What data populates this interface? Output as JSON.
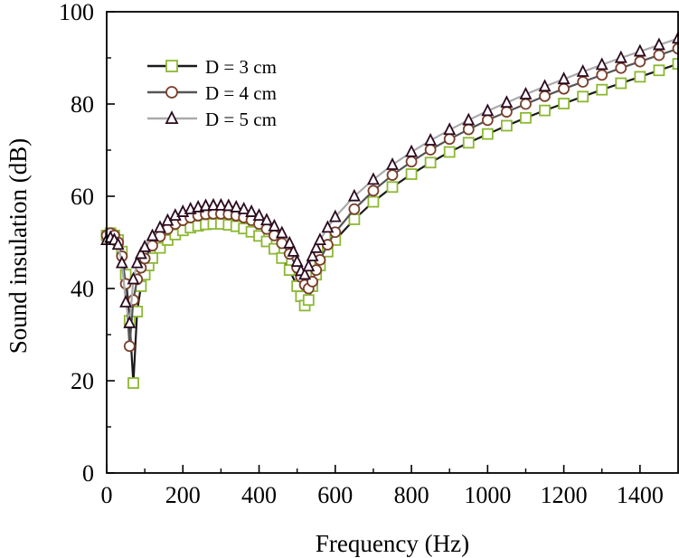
{
  "chart_data": {
    "type": "line",
    "title": "",
    "xlabel": "Frequency (Hz)",
    "ylabel": "Sound insulation (dB)",
    "xlim": [
      0,
      1500
    ],
    "ylim": [
      0,
      100
    ],
    "xticks": [
      0,
      200,
      400,
      600,
      800,
      1000,
      1200,
      1400
    ],
    "yticks": [
      0,
      20,
      40,
      60,
      80,
      100
    ],
    "grid": false,
    "legend_position": "top-left",
    "series": [
      {
        "name": "D = 3 cm",
        "line_color": "#1a1a1a",
        "marker": "square",
        "marker_color": "#8cb832",
        "points": [
          [
            0,
            51.5
          ],
          [
            10,
            52
          ],
          [
            20,
            51.5
          ],
          [
            30,
            50.5
          ],
          [
            40,
            48
          ],
          [
            50,
            43
          ],
          [
            60,
            33
          ],
          [
            70,
            19.5
          ],
          [
            80,
            35
          ],
          [
            90,
            40.5
          ],
          [
            100,
            43
          ],
          [
            110,
            45
          ],
          [
            120,
            46.6
          ],
          [
            140,
            48.8
          ],
          [
            160,
            50.5
          ],
          [
            180,
            51.7
          ],
          [
            200,
            52.6
          ],
          [
            220,
            53.2
          ],
          [
            240,
            53.6
          ],
          [
            260,
            53.9
          ],
          [
            280,
            54
          ],
          [
            300,
            54
          ],
          [
            320,
            53.8
          ],
          [
            340,
            53.5
          ],
          [
            360,
            53
          ],
          [
            380,
            52.3
          ],
          [
            400,
            51.4
          ],
          [
            420,
            50.2
          ],
          [
            440,
            48.6
          ],
          [
            460,
            46.6
          ],
          [
            480,
            44
          ],
          [
            500,
            40.5
          ],
          [
            510,
            38.3
          ],
          [
            520,
            36.3
          ],
          [
            530,
            37.5
          ],
          [
            540,
            40.5
          ],
          [
            550,
            43
          ],
          [
            560,
            45
          ],
          [
            580,
            48
          ],
          [
            600,
            50.5
          ],
          [
            650,
            55
          ],
          [
            700,
            58.8
          ],
          [
            750,
            62
          ],
          [
            800,
            64.8
          ],
          [
            850,
            67.3
          ],
          [
            900,
            69.6
          ],
          [
            950,
            71.6
          ],
          [
            1000,
            73.5
          ],
          [
            1050,
            75.3
          ],
          [
            1100,
            77
          ],
          [
            1150,
            78.6
          ],
          [
            1200,
            80.1
          ],
          [
            1250,
            81.6
          ],
          [
            1300,
            83.1
          ],
          [
            1350,
            84.5
          ],
          [
            1400,
            85.9
          ],
          [
            1450,
            87.3
          ],
          [
            1500,
            88.7
          ]
        ]
      },
      {
        "name": "D = 4 cm",
        "line_color": "#555555",
        "marker": "circle",
        "marker_color": "#7b3f2a",
        "points": [
          [
            0,
            51.5
          ],
          [
            10,
            52
          ],
          [
            20,
            51.5
          ],
          [
            30,
            50
          ],
          [
            40,
            47
          ],
          [
            50,
            41
          ],
          [
            60,
            27.5
          ],
          [
            70,
            37.5
          ],
          [
            80,
            42
          ],
          [
            90,
            44.5
          ],
          [
            100,
            46.5
          ],
          [
            120,
            49.3
          ],
          [
            140,
            51.3
          ],
          [
            160,
            52.9
          ],
          [
            180,
            54
          ],
          [
            200,
            54.8
          ],
          [
            220,
            55.4
          ],
          [
            240,
            55.8
          ],
          [
            260,
            56.1
          ],
          [
            280,
            56.2
          ],
          [
            300,
            56.2
          ],
          [
            320,
            56.1
          ],
          [
            340,
            55.8
          ],
          [
            360,
            55.4
          ],
          [
            380,
            54.8
          ],
          [
            400,
            54
          ],
          [
            420,
            52.9
          ],
          [
            440,
            51.5
          ],
          [
            460,
            49.8
          ],
          [
            480,
            47.5
          ],
          [
            500,
            44.5
          ],
          [
            510,
            42.5
          ],
          [
            520,
            40.8
          ],
          [
            530,
            40
          ],
          [
            540,
            41.5
          ],
          [
            550,
            44
          ],
          [
            560,
            46.2
          ],
          [
            580,
            49.5
          ],
          [
            600,
            52.2
          ],
          [
            650,
            57.2
          ],
          [
            700,
            61.2
          ],
          [
            750,
            64.6
          ],
          [
            800,
            67.5
          ],
          [
            850,
            70.1
          ],
          [
            900,
            72.4
          ],
          [
            950,
            74.5
          ],
          [
            1000,
            76.5
          ],
          [
            1050,
            78.3
          ],
          [
            1100,
            80
          ],
          [
            1150,
            81.7
          ],
          [
            1200,
            83.3
          ],
          [
            1250,
            84.8
          ],
          [
            1300,
            86.3
          ],
          [
            1350,
            87.8
          ],
          [
            1400,
            89.2
          ],
          [
            1450,
            90.6
          ],
          [
            1500,
            92
          ]
        ]
      },
      {
        "name": "D = 5 cm",
        "line_color": "#aaaaaa",
        "marker": "triangle",
        "marker_color": "#2b0a1e",
        "points": [
          [
            0,
            50.5
          ],
          [
            10,
            51
          ],
          [
            20,
            50.5
          ],
          [
            30,
            49.5
          ],
          [
            40,
            45.5
          ],
          [
            50,
            37
          ],
          [
            60,
            32.5
          ],
          [
            70,
            42
          ],
          [
            80,
            45.5
          ],
          [
            90,
            47.5
          ],
          [
            100,
            49
          ],
          [
            120,
            51.4
          ],
          [
            140,
            53.2
          ],
          [
            160,
            54.7
          ],
          [
            180,
            55.8
          ],
          [
            200,
            56.6
          ],
          [
            220,
            57.2
          ],
          [
            240,
            57.6
          ],
          [
            260,
            57.9
          ],
          [
            280,
            58
          ],
          [
            300,
            58
          ],
          [
            320,
            57.9
          ],
          [
            340,
            57.6
          ],
          [
            360,
            57.2
          ],
          [
            380,
            56.6
          ],
          [
            400,
            55.8
          ],
          [
            420,
            54.8
          ],
          [
            440,
            53.5
          ],
          [
            460,
            52
          ],
          [
            480,
            49.8
          ],
          [
            490,
            48
          ],
          [
            500,
            45.8
          ],
          [
            510,
            43.8
          ],
          [
            520,
            43
          ],
          [
            530,
            44.8
          ],
          [
            540,
            47
          ],
          [
            550,
            48.8
          ],
          [
            560,
            50.5
          ],
          [
            580,
            53.2
          ],
          [
            600,
            55.5
          ],
          [
            650,
            60
          ],
          [
            700,
            63.6
          ],
          [
            750,
            66.8
          ],
          [
            800,
            69.6
          ],
          [
            850,
            72.1
          ],
          [
            900,
            74.4
          ],
          [
            950,
            76.5
          ],
          [
            1000,
            78.5
          ],
          [
            1050,
            80.3
          ],
          [
            1100,
            82.1
          ],
          [
            1150,
            83.8
          ],
          [
            1200,
            85.4
          ],
          [
            1250,
            87
          ],
          [
            1300,
            88.5
          ],
          [
            1350,
            90
          ],
          [
            1400,
            91.4
          ],
          [
            1450,
            92.8
          ],
          [
            1500,
            94.2
          ]
        ]
      }
    ]
  }
}
